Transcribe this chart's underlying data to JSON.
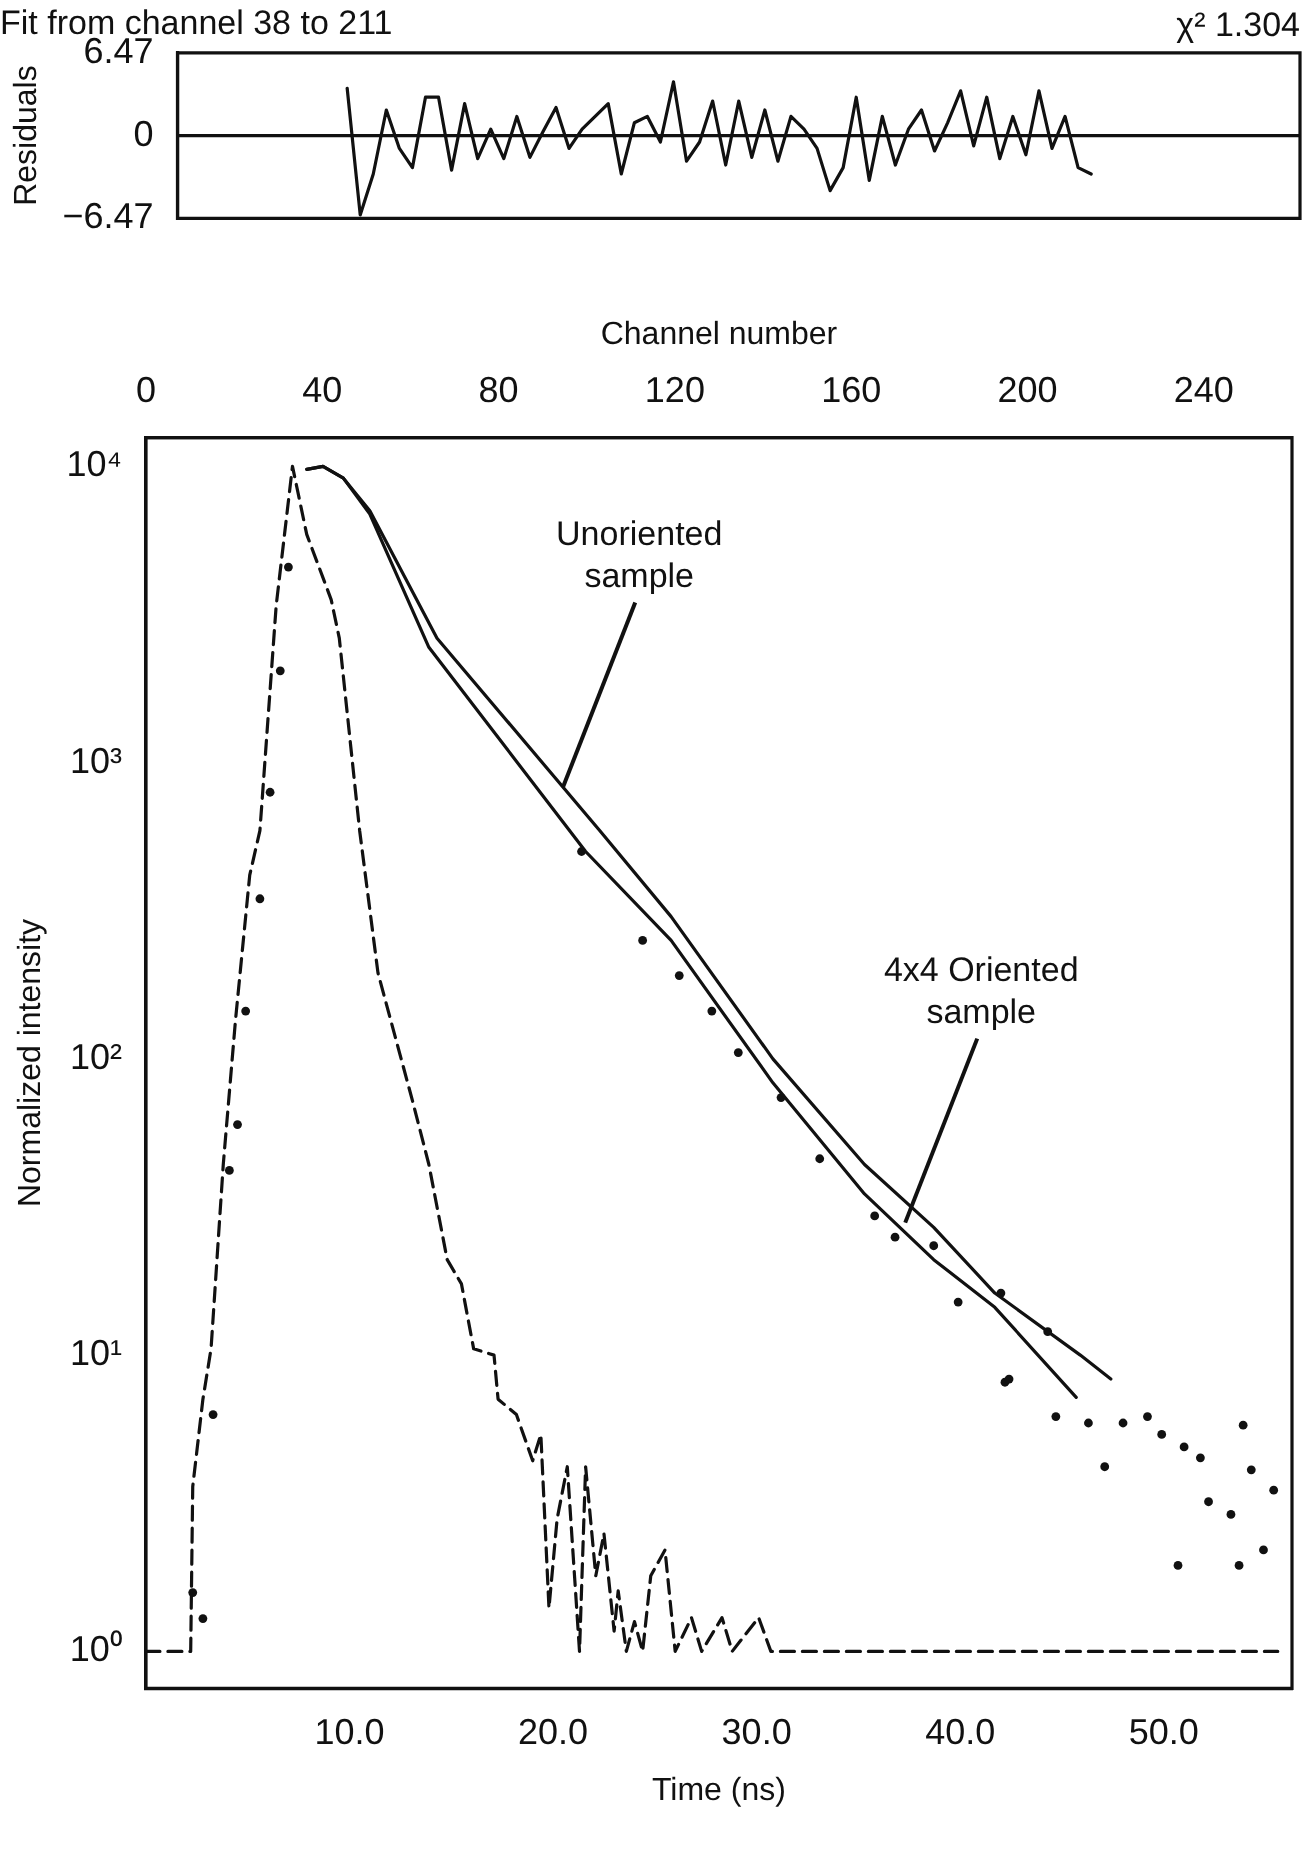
{
  "chart_data": [
    {
      "type": "line",
      "title": "Fit from channel 38 to 211",
      "ylabel": "Residuals",
      "annotations": [
        "χ² 1.304"
      ],
      "categories": [
        null,
        null,
        null,
        null,
        null,
        null,
        null,
        null,
        null,
        null,
        null,
        null,
        null,
        null,
        null,
        null,
        null,
        null,
        null,
        null,
        null,
        null,
        null,
        null,
        null,
        null,
        null,
        null,
        null,
        null,
        null,
        null,
        null,
        null,
        null,
        null,
        null,
        null,
        null,
        null,
        null,
        null,
        null,
        null,
        null,
        null,
        null,
        null,
        null,
        null,
        null,
        null,
        null,
        null,
        null,
        null,
        null,
        null,
        null,
        null,
        null,
        null,
        null,
        null,
        null,
        null,
        null,
        null,
        null,
        null,
        null,
        null,
        null,
        null,
        null,
        null,
        null,
        null,
        null,
        null,
        null,
        null,
        null,
        null,
        null,
        null,
        null
      ],
      "values": [
        null,
        null,
        null,
        null,
        null,
        null,
        null,
        null,
        null,
        null,
        null,
        null,
        null,
        3.7,
        -6.2,
        -3,
        2,
        -1,
        -2.5,
        3,
        3,
        -2.7,
        2.5,
        -1.8,
        0.5,
        -1.8,
        1.5,
        -1.7,
        0.3,
        2.2,
        -1,
        0.5,
        1.5,
        2.5,
        -3,
        1,
        1.5,
        -0.5,
        4.2,
        -2,
        -0.5,
        2.7,
        -2.3,
        2.7,
        -1.7,
        2,
        -2,
        1.5,
        0.5,
        -1,
        -4.3,
        -2.5,
        3,
        -3.5,
        1.5,
        -2.3,
        0.5,
        2,
        -1.2,
        1,
        3.5,
        -0.8,
        3,
        -1.8,
        1.5,
        -1.5,
        3.5,
        -1,
        1.5,
        -2.5,
        -3,
        null,
        null,
        null,
        null,
        null,
        null,
        null,
        null,
        null,
        null,
        null,
        null,
        null,
        null,
        null,
        null
      ],
      "color": "#111111",
      "ylim": [
        -6.47,
        6.47
      ],
      "yticks": [
        {
          "value": -6.47,
          "label": "−6.47"
        },
        0,
        6.47
      ],
      "tick_labels": "y"
    },
    {
      "type": "line",
      "xlabel": "Time (ns)",
      "ylabel": "Normalized intensity",
      "x2label": "Channel number",
      "log": "y",
      "xlim": [
        0,
        56.3
      ],
      "xticks": [
        {
          "value": 10,
          "label": "10.0"
        },
        {
          "value": 20,
          "label": "20.0"
        },
        {
          "value": 30,
          "label": "30.0"
        },
        {
          "value": 40,
          "label": "40.0"
        },
        {
          "value": 50,
          "label": "50.0"
        }
      ],
      "x2lim": [
        0,
        260
      ],
      "x2ticks": [
        0,
        40,
        80,
        120,
        160,
        200,
        240
      ],
      "ylim": [
        0.75,
        12500
      ],
      "yticks": [
        {
          "value": 1,
          "label": "10⁰"
        },
        {
          "value": 10,
          "label": "10¹"
        },
        {
          "value": 100,
          "label": "10²"
        },
        {
          "value": 1000,
          "label": "10³"
        },
        {
          "value": 10000,
          "label": "10⁴"
        }
      ],
      "annotations": [
        {
          "text": "Unoriented sample",
          "x": 20.5,
          "y": 830
        },
        {
          "text": "4x4 Oriented sample",
          "x": 37.3,
          "y": 28
        }
      ],
      "series": [
        {
          "type": "line",
          "line_style": "dashed",
          "color": "#111111",
          "x": [
            0,
            2.2,
            2.3,
            2.8,
            3.2,
            3.8,
            4.4,
            5.1,
            5.6,
            6.4,
            7.2,
            7.9,
            9.1,
            9.5,
            10.5,
            11.4,
            13.1,
            13.9,
            14.8,
            15.5,
            16.1,
            17.1,
            17.3,
            18.2,
            19.0,
            19.4,
            19.8,
            20.2,
            20.7,
            21.3,
            21.6,
            22.1,
            22.5,
            23.0,
            23.2,
            23.6,
            24.0,
            24.4,
            24.8,
            25.5,
            26.0,
            26.8,
            27.3,
            28.3,
            28.8,
            30.1,
            30.7,
            55.6
          ],
          "values": [
            1,
            1,
            3.6,
            7.1,
            10.5,
            44,
            135,
            417,
            589,
            3390,
            10000,
            5890,
            3550,
            2630,
            589,
            195,
            72,
            44,
            21,
            17.4,
            10.5,
            10,
            7.1,
            6.3,
            4.4,
            5.4,
            1.4,
            2.8,
            4.2,
            1,
            4.2,
            1.8,
            2.5,
            1.17,
            1.6,
            1,
            1.26,
            1,
            1.8,
            2.2,
            1,
            1.3,
            1,
            1.3,
            1,
            1.3,
            1,
            1
          ]
        },
        {
          "type": "line",
          "line_style": "solid",
          "color": "#111111",
          "x": [
            7.9,
            8.7,
            9.7,
            11.0,
            14.3,
            22.3,
            25.8,
            30.8,
            35.3,
            38.7,
            41.7,
            45.9,
            47.4
          ],
          "values": [
            9770,
            10000,
            9120,
            7080,
            2630,
            589,
            302,
            100,
            44,
            27,
            16.2,
            10,
            8.3
          ]
        },
        {
          "type": "line",
          "line_style": "solid",
          "color": "#111111",
          "x": [
            7.9,
            8.7,
            9.7,
            11.0,
            13.9,
            21.6,
            25.8,
            30.8,
            35.3,
            38.7,
            41.7,
            45.7
          ],
          "values": [
            9770,
            10000,
            9120,
            6900,
            2450,
            501,
            251,
            83,
            35,
            21,
            14.5,
            7.2
          ]
        },
        {
          "type": "scatter",
          "marker": "circle",
          "color": "#111111",
          "x": [
            2.3,
            2.8,
            3.3,
            4.1,
            4.5,
            4.9,
            5.6,
            6.1,
            6.6,
            7.0,
            21.4,
            24.4,
            26.2,
            27.8,
            29.1,
            31.2,
            33.1,
            35.8,
            36.8,
            38.7,
            39.9,
            42.0,
            42.2,
            42.4,
            44.3,
            44.7,
            46.3,
            47.1,
            48.0,
            49.2,
            49.9,
            50.7,
            51.0,
            51.8,
            52.2,
            53.3,
            53.7,
            53.9,
            54.3,
            54.9,
            55.4
          ],
          "values": [
            1.58,
            1.29,
            6.3,
            42,
            60,
            145,
            347,
            794,
            2040,
            4570,
            501,
            251,
            191,
            145,
            105,
            74,
            46,
            29.5,
            25,
            23.4,
            15.1,
            16.2,
            8.1,
            8.3,
            12,
            6.2,
            5.9,
            4.2,
            5.9,
            6.2,
            5.4,
            1.95,
            4.9,
            4.5,
            3.2,
            2.9,
            1.95,
            5.8,
            4.1,
            2.2,
            3.5
          ]
        }
      ]
    }
  ]
}
